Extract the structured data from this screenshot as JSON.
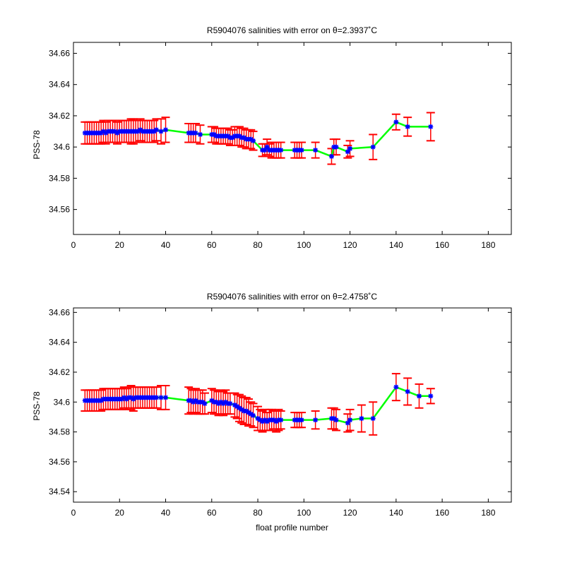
{
  "chart_data": [
    {
      "type": "line",
      "title": "R5904076 salinities with error on θ=2.3937˚C",
      "xlabel": "",
      "ylabel": "PSS-78",
      "xlim": [
        0,
        190
      ],
      "ylim": [
        34.544,
        34.667
      ],
      "xticks": [
        0,
        20,
        40,
        60,
        80,
        100,
        120,
        140,
        160,
        180
      ],
      "xtick_labels": [
        "0",
        "20",
        "40",
        "60",
        "80",
        "100",
        "120",
        "140",
        "160",
        "180"
      ],
      "yticks": [
        34.56,
        34.58,
        34.6,
        34.62,
        34.64,
        34.66
      ],
      "ytick_labels": [
        "34.56",
        "34.58",
        "34.6",
        "34.62",
        "34.64",
        "34.66"
      ],
      "grid": false,
      "colors": {
        "line": "#00ff00",
        "marker": "#0000ff",
        "error": "#ff0000"
      },
      "x": [
        5,
        6,
        7,
        8,
        9,
        10,
        11,
        12,
        13,
        14,
        15,
        16,
        17,
        18,
        19,
        20,
        21,
        22,
        23,
        24,
        25,
        26,
        27,
        28,
        29,
        30,
        31,
        32,
        33,
        34,
        35,
        36,
        38,
        40,
        50,
        51,
        52,
        53,
        55,
        60,
        61,
        62,
        63,
        64,
        65,
        66,
        67,
        68,
        69,
        70,
        71,
        72,
        73,
        74,
        75,
        76,
        77,
        78,
        82,
        83,
        84,
        85,
        86,
        87,
        88,
        89,
        90,
        96,
        97,
        98,
        99,
        105,
        112,
        113,
        114,
        119,
        120,
        130,
        140,
        145,
        155
      ],
      "y": [
        34.609,
        34.609,
        34.609,
        34.609,
        34.609,
        34.609,
        34.609,
        34.609,
        34.61,
        34.609,
        34.61,
        34.61,
        34.61,
        34.61,
        34.609,
        34.61,
        34.61,
        34.61,
        34.61,
        34.61,
        34.61,
        34.61,
        34.61,
        34.61,
        34.611,
        34.61,
        34.61,
        34.61,
        34.61,
        34.61,
        34.61,
        34.611,
        34.61,
        34.611,
        34.609,
        34.609,
        34.609,
        34.609,
        34.608,
        34.608,
        34.608,
        34.607,
        34.607,
        34.607,
        34.607,
        34.607,
        34.607,
        34.606,
        34.606,
        34.607,
        34.607,
        34.607,
        34.606,
        34.606,
        34.605,
        34.605,
        34.605,
        34.604,
        34.598,
        34.598,
        34.6,
        34.598,
        34.598,
        34.598,
        34.598,
        34.598,
        34.598,
        34.598,
        34.598,
        34.598,
        34.598,
        34.598,
        34.594,
        34.6,
        34.6,
        34.597,
        34.599,
        34.6,
        34.616,
        34.613,
        34.613
      ],
      "err": [
        0.007,
        0.007,
        0.007,
        0.007,
        0.007,
        0.007,
        0.007,
        0.007,
        0.007,
        0.007,
        0.007,
        0.007,
        0.007,
        0.007,
        0.007,
        0.007,
        0.007,
        0.007,
        0.007,
        0.007,
        0.008,
        0.008,
        0.007,
        0.007,
        0.007,
        0.007,
        0.007,
        0.007,
        0.007,
        0.007,
        0.007,
        0.007,
        0.008,
        0.008,
        0.006,
        0.006,
        0.006,
        0.006,
        0.006,
        0.005,
        0.005,
        0.005,
        0.005,
        0.005,
        0.005,
        0.005,
        0.005,
        0.005,
        0.005,
        0.006,
        0.006,
        0.006,
        0.006,
        0.006,
        0.006,
        0.006,
        0.006,
        0.006,
        0.004,
        0.004,
        0.005,
        0.004,
        0.005,
        0.005,
        0.005,
        0.005,
        0.005,
        0.005,
        0.005,
        0.005,
        0.005,
        0.005,
        0.005,
        0.005,
        0.005,
        0.004,
        0.005,
        0.008,
        0.005,
        0.006,
        0.009
      ]
    },
    {
      "type": "line",
      "title": "R5904076 salinities with error on θ=2.4758˚C",
      "xlabel": "float profile number",
      "ylabel": "PSS-78",
      "xlim": [
        0,
        190
      ],
      "ylim": [
        34.533,
        34.663
      ],
      "xticks": [
        0,
        20,
        40,
        60,
        80,
        100,
        120,
        140,
        160,
        180
      ],
      "xtick_labels": [
        "0",
        "20",
        "40",
        "60",
        "80",
        "100",
        "120",
        "140",
        "160",
        "180"
      ],
      "yticks": [
        34.54,
        34.56,
        34.58,
        34.6,
        34.62,
        34.64,
        34.66
      ],
      "ytick_labels": [
        "34.54",
        "34.56",
        "34.58",
        "34.6",
        "34.62",
        "34.64",
        "34.66"
      ],
      "grid": false,
      "colors": {
        "line": "#00ff00",
        "marker": "#0000ff",
        "error": "#ff0000"
      },
      "x": [
        5,
        6,
        7,
        8,
        9,
        10,
        11,
        12,
        13,
        14,
        15,
        16,
        17,
        18,
        19,
        20,
        21,
        22,
        23,
        24,
        25,
        26,
        27,
        28,
        29,
        30,
        31,
        32,
        33,
        34,
        35,
        36,
        38,
        40,
        50,
        51,
        52,
        53,
        54,
        55,
        56,
        57,
        60,
        61,
        62,
        63,
        64,
        65,
        66,
        67,
        68,
        70,
        71,
        72,
        73,
        74,
        75,
        76,
        77,
        78,
        80,
        81,
        82,
        83,
        84,
        85,
        86,
        87,
        88,
        89,
        90,
        96,
        97,
        98,
        99,
        105,
        112,
        113,
        114,
        119,
        120,
        125,
        130,
        140,
        145,
        150,
        155
      ],
      "y": [
        34.601,
        34.601,
        34.601,
        34.601,
        34.601,
        34.601,
        34.601,
        34.601,
        34.602,
        34.602,
        34.602,
        34.602,
        34.602,
        34.602,
        34.602,
        34.602,
        34.602,
        34.603,
        34.602,
        34.603,
        34.603,
        34.602,
        34.603,
        34.603,
        34.603,
        34.603,
        34.603,
        34.603,
        34.603,
        34.603,
        34.603,
        34.603,
        34.603,
        34.603,
        34.601,
        34.601,
        34.6,
        34.601,
        34.6,
        34.6,
        34.6,
        34.599,
        34.601,
        34.6,
        34.6,
        34.599,
        34.6,
        34.599,
        34.6,
        34.599,
        34.599,
        34.598,
        34.597,
        34.596,
        34.595,
        34.594,
        34.594,
        34.593,
        34.592,
        34.591,
        34.589,
        34.588,
        34.587,
        34.588,
        34.587,
        34.588,
        34.588,
        34.588,
        34.587,
        34.588,
        34.588,
        34.588,
        34.588,
        34.588,
        34.588,
        34.588,
        34.589,
        34.589,
        34.588,
        34.586,
        34.588,
        34.589,
        34.589,
        34.61,
        34.607,
        34.604,
        34.604
      ],
      "err": [
        0.007,
        0.007,
        0.007,
        0.007,
        0.007,
        0.007,
        0.007,
        0.007,
        0.007,
        0.007,
        0.007,
        0.007,
        0.007,
        0.007,
        0.007,
        0.007,
        0.007,
        0.007,
        0.007,
        0.007,
        0.008,
        0.008,
        0.007,
        0.007,
        0.007,
        0.007,
        0.007,
        0.007,
        0.007,
        0.007,
        0.007,
        0.007,
        0.008,
        0.008,
        0.009,
        0.008,
        0.008,
        0.008,
        0.008,
        0.008,
        0.008,
        0.007,
        0.008,
        0.008,
        0.008,
        0.008,
        0.008,
        0.008,
        0.008,
        0.007,
        0.007,
        0.008,
        0.008,
        0.009,
        0.009,
        0.009,
        0.009,
        0.009,
        0.008,
        0.008,
        0.008,
        0.007,
        0.007,
        0.007,
        0.006,
        0.007,
        0.007,
        0.006,
        0.007,
        0.007,
        0.006,
        0.005,
        0.005,
        0.005,
        0.005,
        0.006,
        0.007,
        0.007,
        0.007,
        0.006,
        0.007,
        0.009,
        0.011,
        0.009,
        0.009,
        0.008,
        0.005
      ]
    }
  ]
}
